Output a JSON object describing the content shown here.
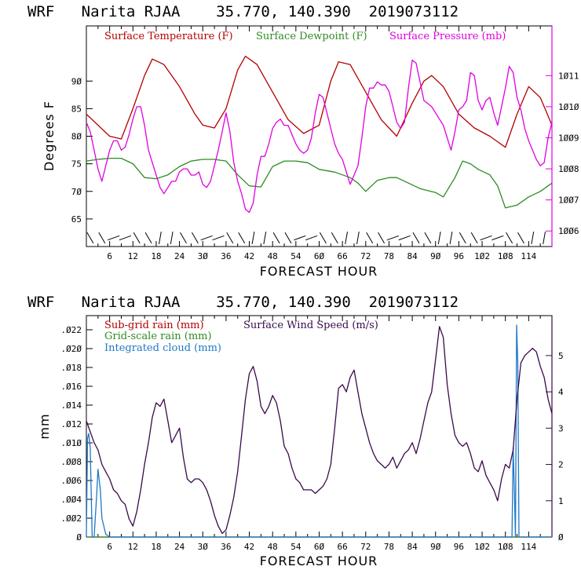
{
  "chart_data": [
    {
      "type": "line",
      "title": "WRF   Narita RJAA    35.770, 140.390  2019073112",
      "xlabel": "FORECAST HOUR",
      "ylabel": "Degrees F",
      "x_range": [
        0,
        120
      ],
      "x_ticks": [
        6,
        12,
        18,
        24,
        30,
        36,
        42,
        48,
        54,
        60,
        66,
        72,
        78,
        84,
        90,
        96,
        102,
        108,
        114
      ],
      "ylim": [
        60,
        100
      ],
      "y_ticks": [
        65,
        70,
        75,
        80,
        85,
        90
      ],
      "y2lim": [
        1005.5,
        1012.6
      ],
      "y2_ticks": [
        1006,
        1007,
        1008,
        1009,
        1010,
        1011
      ],
      "colors": {
        "temperature": "#b30000",
        "dewpoint": "#2e8b22",
        "pressure": "#e000e0"
      },
      "series": [
        {
          "name": "Surface Temperature (F)",
          "axis": "left",
          "color": "#b30000",
          "x": [
            0,
            3,
            6,
            9,
            12,
            15,
            17,
            20,
            24,
            28,
            30,
            33,
            36,
            39,
            41,
            44,
            48,
            52,
            56,
            60,
            63,
            65,
            68,
            72,
            76,
            80,
            84,
            87,
            89,
            92,
            96,
            100,
            104,
            108,
            111,
            114,
            117,
            120
          ],
          "values": [
            84,
            82,
            80,
            79.5,
            85,
            91,
            94,
            93,
            89,
            84,
            82,
            81.5,
            85,
            92,
            94.5,
            93,
            88,
            83,
            80.5,
            82,
            90,
            93.5,
            93,
            88,
            83,
            80,
            86,
            90,
            91,
            89,
            84,
            81.5,
            80,
            78,
            84,
            89,
            87,
            82
          ]
        },
        {
          "name": "Surface Dewpoint (F)",
          "axis": "left",
          "color": "#2e8b22",
          "x": [
            0,
            3,
            6,
            9,
            12,
            15,
            18,
            21,
            24,
            27,
            30,
            33,
            36,
            39,
            42,
            45,
            48,
            51,
            54,
            57,
            60,
            64,
            68,
            70,
            72,
            75,
            78,
            80,
            83,
            86,
            90,
            92,
            95,
            97,
            99,
            101,
            104,
            106,
            108,
            111,
            114,
            117,
            120
          ],
          "values": [
            75.5,
            75.8,
            76,
            76,
            75,
            72.5,
            72.3,
            73,
            74.5,
            75.5,
            75.8,
            75.8,
            75.5,
            73,
            71,
            70.8,
            74.5,
            75.5,
            75.5,
            75.2,
            74,
            73.5,
            72.5,
            71.5,
            70,
            72,
            72.5,
            72.5,
            71.5,
            70.5,
            69.8,
            69,
            72.5,
            75.5,
            75,
            74,
            73,
            71,
            67,
            67.5,
            69,
            70,
            71.5
          ]
        },
        {
          "name": "Surface Pressure (mb)",
          "axis": "right",
          "color": "#e000e0",
          "x": [
            0,
            1,
            2,
            3,
            4,
            5,
            6,
            7,
            8,
            9,
            10,
            11,
            12,
            13,
            14,
            15,
            16,
            17,
            18,
            19,
            20,
            21,
            22,
            23,
            24,
            25,
            26,
            27,
            28,
            29,
            30,
            31,
            32,
            33,
            34,
            35,
            36,
            37,
            38,
            39,
            40,
            41,
            42,
            43,
            44,
            45,
            46,
            47,
            48,
            49,
            50,
            51,
            52,
            53,
            54,
            55,
            56,
            57,
            58,
            59,
            60,
            61,
            62,
            63,
            64,
            65,
            66,
            67,
            68,
            69,
            70,
            71,
            72,
            73,
            74,
            75,
            76,
            77,
            78,
            79,
            80,
            81,
            82,
            83,
            84,
            85,
            86,
            87,
            88,
            89,
            90,
            91,
            92,
            93,
            94,
            95,
            96,
            97,
            98,
            99,
            100,
            101,
            102,
            103,
            104,
            105,
            106,
            107,
            108,
            109,
            110,
            111,
            112,
            113,
            114,
            115,
            116,
            117,
            118,
            119,
            120
          ],
          "values": [
            1009.5,
            1009.2,
            1008.6,
            1008.0,
            1007.6,
            1008.1,
            1008.6,
            1008.9,
            1008.9,
            1008.6,
            1008.7,
            1009.1,
            1009.6,
            1010.0,
            1010.0,
            1009.4,
            1008.6,
            1008.2,
            1007.8,
            1007.4,
            1007.2,
            1007.4,
            1007.6,
            1007.6,
            1007.9,
            1008.0,
            1008.0,
            1007.8,
            1007.8,
            1007.9,
            1007.5,
            1007.4,
            1007.6,
            1008.1,
            1008.6,
            1009.2,
            1009.8,
            1009.2,
            1008.2,
            1007.6,
            1007.2,
            1006.7,
            1006.6,
            1006.9,
            1007.8,
            1008.4,
            1008.4,
            1008.8,
            1009.3,
            1009.5,
            1009.6,
            1009.4,
            1009.4,
            1009.1,
            1008.8,
            1008.6,
            1008.5,
            1008.6,
            1009.0,
            1009.8,
            1010.4,
            1010.3,
            1009.8,
            1009.3,
            1008.8,
            1008.5,
            1008.3,
            1007.9,
            1007.5,
            1007.8,
            1008.1,
            1009.0,
            1010.0,
            1010.6,
            1010.6,
            1010.8,
            1010.7,
            1010.7,
            1010.5,
            1010.0,
            1009.5,
            1009.3,
            1009.5,
            1010.6,
            1011.5,
            1011.4,
            1010.8,
            1010.2,
            1010.1,
            1010.0,
            1009.8,
            1009.6,
            1009.4,
            1009.0,
            1008.6,
            1009.2,
            1009.9,
            1010.0,
            1010.2,
            1011.1,
            1011.0,
            1010.2,
            1009.9,
            1010.2,
            1010.3,
            1009.8,
            1009.4,
            1010.0,
            1010.6,
            1011.3,
            1011.1,
            1010.3,
            1009.9,
            1009.3,
            1008.9,
            1008.6,
            1008.3,
            1008.1,
            1008.2,
            1009.0,
            1009.5
          ]
        }
      ],
      "legend": [
        "Surface Temperature (F)",
        "Surface Dewpoint (F)",
        "Surface Pressure (mb)"
      ],
      "legend_position": "top",
      "grid": false,
      "wind_barbs": "bottom row"
    },
    {
      "type": "line",
      "title": "WRF   Narita RJAA    35.770, 140.390  2019073112",
      "xlabel": "FORECAST HOUR",
      "ylabel": "mm",
      "x_range": [
        0,
        120
      ],
      "x_ticks": [
        6,
        12,
        18,
        24,
        30,
        36,
        42,
        48,
        54,
        60,
        66,
        72,
        78,
        84,
        90,
        96,
        102,
        108,
        114
      ],
      "ylim": [
        0,
        0.0235
      ],
      "y_ticks": [
        ".022",
        ".020",
        ".018",
        ".016",
        ".014",
        ".012",
        ".010",
        ".008",
        ".006",
        ".004",
        ".002",
        "0"
      ],
      "y2lim": [
        0,
        6.1
      ],
      "y2_ticks": [
        0,
        1,
        2,
        3,
        4,
        5
      ],
      "colors": {
        "subgrid_rain": "#b30000",
        "gridscale_rain": "#2e8b22",
        "cloud": "#1f78c8",
        "wind": "#3a0a4a"
      },
      "series": [
        {
          "name": "Sub-grid rain (mm)",
          "axis": "left",
          "color": "#b30000",
          "x": [
            0,
            120
          ],
          "values": [
            0,
            0
          ]
        },
        {
          "name": "Grid-scale rain (mm)",
          "axis": "left",
          "color": "#2e8b22",
          "x": [
            0,
            120
          ],
          "values": [
            0,
            0
          ]
        },
        {
          "name": "Integrated cloud (mm)",
          "axis": "left",
          "color": "#1f78c8",
          "x": [
            0,
            0.3,
            0.6,
            1,
            1.5,
            2,
            2.6,
            3,
            3.6,
            4,
            5,
            6,
            7,
            109.7,
            110,
            110.3,
            110.6,
            110.9,
            111.2,
            111.5,
            120
          ],
          "values": [
            0,
            0.0105,
            0.011,
            0.0095,
            0,
            0,
            0.004,
            0.0072,
            0.005,
            0.002,
            0.0003,
            0,
            0,
            0,
            0.0095,
            0.005,
            0,
            0.0225,
            0.0185,
            0,
            0
          ]
        },
        {
          "name": "Surface Wind Speed (m/s)",
          "axis": "right",
          "color": "#3a0a4a",
          "x": [
            0,
            1,
            2,
            3,
            4,
            5,
            6,
            7,
            8,
            9,
            10,
            11,
            12,
            13,
            14,
            15,
            16,
            17,
            18,
            19,
            20,
            21,
            22,
            23,
            24,
            25,
            26,
            27,
            28,
            29,
            30,
            31,
            32,
            33,
            34,
            35,
            36,
            37,
            38,
            39,
            40,
            41,
            42,
            43,
            44,
            45,
            46,
            47,
            48,
            49,
            50,
            51,
            52,
            53,
            54,
            55,
            56,
            57,
            58,
            59,
            60,
            61,
            62,
            63,
            64,
            65,
            66,
            67,
            68,
            69,
            70,
            71,
            72,
            73,
            74,
            75,
            76,
            77,
            78,
            79,
            80,
            81,
            82,
            83,
            84,
            85,
            86,
            87,
            88,
            89,
            90,
            91,
            92,
            93,
            94,
            95,
            96,
            97,
            98,
            99,
            100,
            101,
            102,
            103,
            104,
            105,
            106,
            107,
            108,
            109,
            110,
            111,
            112,
            113,
            114,
            115,
            116,
            117,
            118,
            119,
            120
          ],
          "values": [
            3.2,
            2.9,
            2.6,
            2.4,
            2.0,
            1.8,
            1.6,
            1.3,
            1.2,
            1.0,
            0.9,
            0.5,
            0.3,
            0.7,
            1.3,
            2.0,
            2.6,
            3.3,
            3.7,
            3.6,
            3.8,
            3.2,
            2.6,
            2.8,
            3.0,
            2.2,
            1.6,
            1.5,
            1.6,
            1.6,
            1.5,
            1.3,
            1.0,
            0.6,
            0.3,
            0.1,
            0.2,
            0.6,
            1.1,
            1.8,
            2.8,
            3.8,
            4.5,
            4.7,
            4.3,
            3.6,
            3.4,
            3.6,
            3.9,
            3.7,
            3.2,
            2.5,
            2.3,
            1.9,
            1.6,
            1.5,
            1.3,
            1.3,
            1.3,
            1.2,
            1.3,
            1.4,
            1.6,
            2.0,
            3.0,
            4.1,
            4.2,
            4.0,
            4.4,
            4.6,
            4.0,
            3.4,
            3.0,
            2.6,
            2.3,
            2.1,
            2.0,
            1.9,
            2.0,
            2.2,
            1.9,
            2.1,
            2.3,
            2.4,
            2.6,
            2.3,
            2.7,
            3.2,
            3.7,
            4.0,
            4.9,
            5.8,
            5.5,
            4.2,
            3.4,
            2.8,
            2.6,
            2.5,
            2.6,
            2.3,
            1.9,
            1.8,
            2.1,
            1.7,
            1.5,
            1.3,
            1.0,
            1.6,
            2.0,
            1.9,
            2.4,
            3.8,
            4.8,
            5.0,
            5.1,
            5.2,
            5.1,
            4.7,
            4.4,
            3.8,
            3.4
          ]
        }
      ],
      "legend": [
        "Sub-grid rain (mm)",
        "Surface Wind Speed (m/s)",
        "Grid-scale rain (mm)",
        "Integrated cloud (mm)"
      ],
      "legend_position": "top-left",
      "grid": false
    }
  ]
}
